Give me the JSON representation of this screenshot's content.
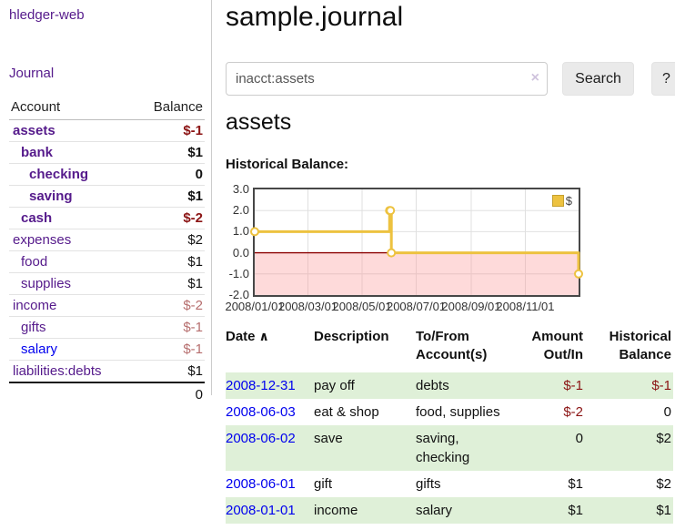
{
  "colors": {
    "accent_purple": "#551a8b",
    "link_blue": "#0000ee",
    "negative_strong": "#8b1414",
    "negative_soft": "#b66e6e",
    "row_green": "#dff0d8",
    "chart_line": "#edc240",
    "chart_negative_region": "#ffdcdc",
    "chart_zero_line": "#8b0000"
  },
  "app": {
    "title": "hledger-web"
  },
  "sidebar": {
    "nav_journal": "Journal",
    "account_header": "Account",
    "balance_header": "Balance",
    "accounts": [
      {
        "account": "assets",
        "balance": "$-1",
        "indent": 0,
        "bold": true,
        "neg": "strong",
        "link": "visited"
      },
      {
        "account": "bank",
        "balance": "$1",
        "indent": 1,
        "bold": true,
        "neg": "none",
        "link": "visited"
      },
      {
        "account": "checking",
        "balance": "0",
        "indent": 2,
        "bold": true,
        "neg": "none",
        "link": "visited"
      },
      {
        "account": "saving",
        "balance": "$1",
        "indent": 2,
        "bold": true,
        "neg": "none",
        "link": "visited"
      },
      {
        "account": "cash",
        "balance": "$-2",
        "indent": 1,
        "bold": true,
        "neg": "strong",
        "link": "visited"
      },
      {
        "account": "expenses",
        "balance": "$2",
        "indent": 0,
        "bold": false,
        "neg": "none",
        "link": "visited"
      },
      {
        "account": "food",
        "balance": "$1",
        "indent": 1,
        "bold": false,
        "neg": "none",
        "link": "visited"
      },
      {
        "account": "supplies",
        "balance": "$1",
        "indent": 1,
        "bold": false,
        "neg": "none",
        "link": "visited"
      },
      {
        "account": "income",
        "balance": "$-2",
        "indent": 0,
        "bold": false,
        "neg": "soft",
        "link": "visited"
      },
      {
        "account": "gifts",
        "balance": "$-1",
        "indent": 1,
        "bold": false,
        "neg": "soft",
        "link": "visited"
      },
      {
        "account": "salary",
        "balance": "$-1",
        "indent": 1,
        "bold": false,
        "neg": "soft",
        "link": "new"
      },
      {
        "account": "liabilities:debts",
        "balance": "$1",
        "indent": 0,
        "bold": false,
        "neg": "none",
        "link": "visited"
      }
    ],
    "total": "0"
  },
  "main": {
    "title": "sample.journal",
    "search": {
      "value": "inacct:assets",
      "clear_icon": "×",
      "search_button": "Search",
      "help_button": "?"
    },
    "account_heading": "assets",
    "section_label": "Historical Balance:"
  },
  "chart_data": {
    "type": "line",
    "style": "step",
    "title": "Historical Balance",
    "legend": "$",
    "legend_position": "top-right",
    "grid": true,
    "negative_region_highlight": true,
    "xlim": [
      "2008-01-01",
      "2008-12-31"
    ],
    "ylim": [
      -2,
      3
    ],
    "yticks": [
      3,
      2,
      1,
      0,
      -1,
      -2
    ],
    "ytick_labels": [
      "3.0",
      "2.0",
      "1.0",
      "0.0",
      "-1.0",
      "-2.0"
    ],
    "xtick_labels": [
      "2008/01/01",
      "2008/03/01",
      "2008/05/01",
      "2008/07/01",
      "2008/09/01",
      "2008/11/01"
    ],
    "series": [
      {
        "name": "$",
        "x": [
          "2008-01-01",
          "2008-06-01",
          "2008-06-02",
          "2008-06-03",
          "2008-12-31"
        ],
        "values": [
          1,
          2,
          2,
          0,
          -1
        ]
      }
    ],
    "line_color": "#edc240"
  },
  "register": {
    "headers": {
      "date": "Date",
      "sort_icon": "∧",
      "description": "Description",
      "accounts": "To/From Account(s)",
      "amount": "Amount Out/In",
      "balance": "Historical Balance"
    },
    "rows": [
      {
        "date": "2008-12-31",
        "description": "pay off",
        "accounts": "debts",
        "amount": "$-1",
        "balance": "$-1",
        "amount_neg": true,
        "balance_neg": true,
        "green": true
      },
      {
        "date": "2008-06-03",
        "description": "eat & shop",
        "accounts": "food, supplies",
        "amount": "$-2",
        "balance": "0",
        "amount_neg": true,
        "balance_neg": false,
        "green": false
      },
      {
        "date": "2008-06-02",
        "description": "save",
        "accounts": "saving, checking",
        "amount": "0",
        "balance": "$2",
        "amount_neg": false,
        "balance_neg": false,
        "green": true
      },
      {
        "date": "2008-06-01",
        "description": "gift",
        "accounts": "gifts",
        "amount": "$1",
        "balance": "$2",
        "amount_neg": false,
        "balance_neg": false,
        "green": false
      },
      {
        "date": "2008-01-01",
        "description": "income",
        "accounts": "salary",
        "amount": "$1",
        "balance": "$1",
        "amount_neg": false,
        "balance_neg": false,
        "green": true
      }
    ]
  }
}
